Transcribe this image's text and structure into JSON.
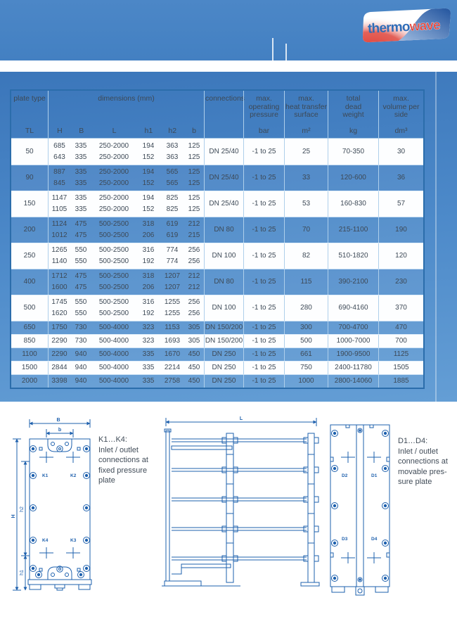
{
  "logo": {
    "part1": "thermo",
    "part2": "wave"
  },
  "table": {
    "header": {
      "plate_type": "plate type",
      "dimensions": "dimensions (mm)",
      "connections": "connections",
      "pressure": "max.\noperating\npressure",
      "surface": "max.\nheat transfer\nsurface",
      "weight": "total\ndead\nweight",
      "volume": "max.\nvolume per\nside",
      "sub": {
        "tl": "TL",
        "h": "H",
        "b_cap": "B",
        "l": "L",
        "h1": "h1",
        "h2": "h2",
        "b_low": "b",
        "bar": "bar",
        "m2": "m²",
        "kg": "kg",
        "dm3": "dm³"
      }
    },
    "rows": [
      {
        "type": "50",
        "shaded": false,
        "dims": [
          [
            "685",
            "335",
            "250-2000",
            "194",
            "363",
            "125"
          ],
          [
            "643",
            "335",
            "250-2000",
            "152",
            "363",
            "125"
          ]
        ],
        "connections": "DN 25/40",
        "pressure": "-1 to 25",
        "surface": "25",
        "weight": "70-350",
        "volume": "30"
      },
      {
        "type": "90",
        "shaded": true,
        "dims": [
          [
            "887",
            "335",
            "250-2000",
            "194",
            "565",
            "125"
          ],
          [
            "845",
            "335",
            "250-2000",
            "152",
            "565",
            "125"
          ]
        ],
        "connections": "DN 25/40",
        "pressure": "-1 to 25",
        "surface": "33",
        "weight": "120-600",
        "volume": "36"
      },
      {
        "type": "150",
        "shaded": false,
        "dims": [
          [
            "1147",
            "335",
            "250-2000",
            "194",
            "825",
            "125"
          ],
          [
            "1105",
            "335",
            "250-2000",
            "152",
            "825",
            "125"
          ]
        ],
        "connections": "DN 25/40",
        "pressure": "-1 to 25",
        "surface": "53",
        "weight": "160-830",
        "volume": "57"
      },
      {
        "type": "200",
        "shaded": true,
        "dims": [
          [
            "1124",
            "475",
            "500-2500",
            "318",
            "619",
            "212"
          ],
          [
            "1012",
            "475",
            "500-2500",
            "206",
            "619",
            "215"
          ]
        ],
        "connections": "DN 80",
        "pressure": "-1 to 25",
        "surface": "70",
        "weight": "215-1100",
        "volume": "190"
      },
      {
        "type": "250",
        "shaded": false,
        "dims": [
          [
            "1265",
            "550",
            "500-2500",
            "316",
            "774",
            "256"
          ],
          [
            "1140",
            "550",
            "500-2500",
            "192",
            "774",
            "256"
          ]
        ],
        "connections": "DN 100",
        "pressure": "-1 to 25",
        "surface": "82",
        "weight": "510-1820",
        "volume": "120"
      },
      {
        "type": "400",
        "shaded": true,
        "dims": [
          [
            "1712",
            "475",
            "500-2500",
            "318",
            "1207",
            "212"
          ],
          [
            "1600",
            "475",
            "500-2500",
            "206",
            "1207",
            "212"
          ]
        ],
        "connections": "DN 80",
        "pressure": "-1 to 25",
        "surface": "115",
        "weight": "390-2100",
        "volume": "230"
      },
      {
        "type": "500",
        "shaded": false,
        "dims": [
          [
            "1745",
            "550",
            "500-2500",
            "316",
            "1255",
            "256"
          ],
          [
            "1620",
            "550",
            "500-2500",
            "192",
            "1255",
            "256"
          ]
        ],
        "connections": "DN 100",
        "pressure": "-1 to 25",
        "surface": "280",
        "weight": "690-4160",
        "volume": "370"
      },
      {
        "type": "650",
        "shaded": true,
        "dims": [
          [
            "1750",
            "730",
            "500-4000",
            "323",
            "1153",
            "305"
          ]
        ],
        "connections": "DN 150/200",
        "pressure": "-1 to 25",
        "surface": "300",
        "weight": "700-4700",
        "volume": "470"
      },
      {
        "type": "850",
        "shaded": false,
        "dims": [
          [
            "2290",
            "730",
            "500-4000",
            "323",
            "1693",
            "305"
          ]
        ],
        "connections": "DN 150/200",
        "pressure": "-1 to 25",
        "surface": "500",
        "weight": "1000-7000",
        "volume": "700"
      },
      {
        "type": "1100",
        "shaded": true,
        "dims": [
          [
            "2290",
            "940",
            "500-4000",
            "335",
            "1670",
            "450"
          ]
        ],
        "connections": "DN 250",
        "pressure": "-1 to 25",
        "surface": "661",
        "weight": "1900-9500",
        "volume": "1125"
      },
      {
        "type": "1500",
        "shaded": false,
        "dims": [
          [
            "2844",
            "940",
            "500-4000",
            "335",
            "2214",
            "450"
          ]
        ],
        "connections": "DN 250",
        "pressure": "-1 to 25",
        "surface": "750",
        "weight": "2400-11780",
        "volume": "1505"
      },
      {
        "type": "2000",
        "shaded": true,
        "dims": [
          [
            "3398",
            "940",
            "500-4000",
            "335",
            "2758",
            "450"
          ]
        ],
        "connections": "DN 250",
        "pressure": "-1 to 25",
        "surface": "1000",
        "weight": "2800-14060",
        "volume": "1885"
      }
    ]
  },
  "diagrams": {
    "left_note": {
      "title": "K1…K4:",
      "lines": [
        "Inlet / outlet",
        "connections at",
        "fixed pressure",
        "plate"
      ]
    },
    "right_note": {
      "title": "D1…D4:",
      "lines": [
        "Inlet / outlet",
        "connections at",
        "movable pres-",
        "sure plate"
      ]
    },
    "labels": {
      "B": "B",
      "b": "b",
      "H": "H",
      "h1": "h1",
      "h2": "h2",
      "L": "L",
      "K1": "K1",
      "K2": "K2",
      "K3": "K3",
      "K4": "K4",
      "D1": "D1",
      "D2": "D2",
      "D3": "D3",
      "D4": "D4"
    }
  },
  "colors": {
    "band_blue": "#4a85c5",
    "table_border": "#2b6dab",
    "drawing_blue": "#1e60ad",
    "logo_red": "#d6453e",
    "logo_blue": "#2f6db8",
    "text": "#3d4956"
  }
}
